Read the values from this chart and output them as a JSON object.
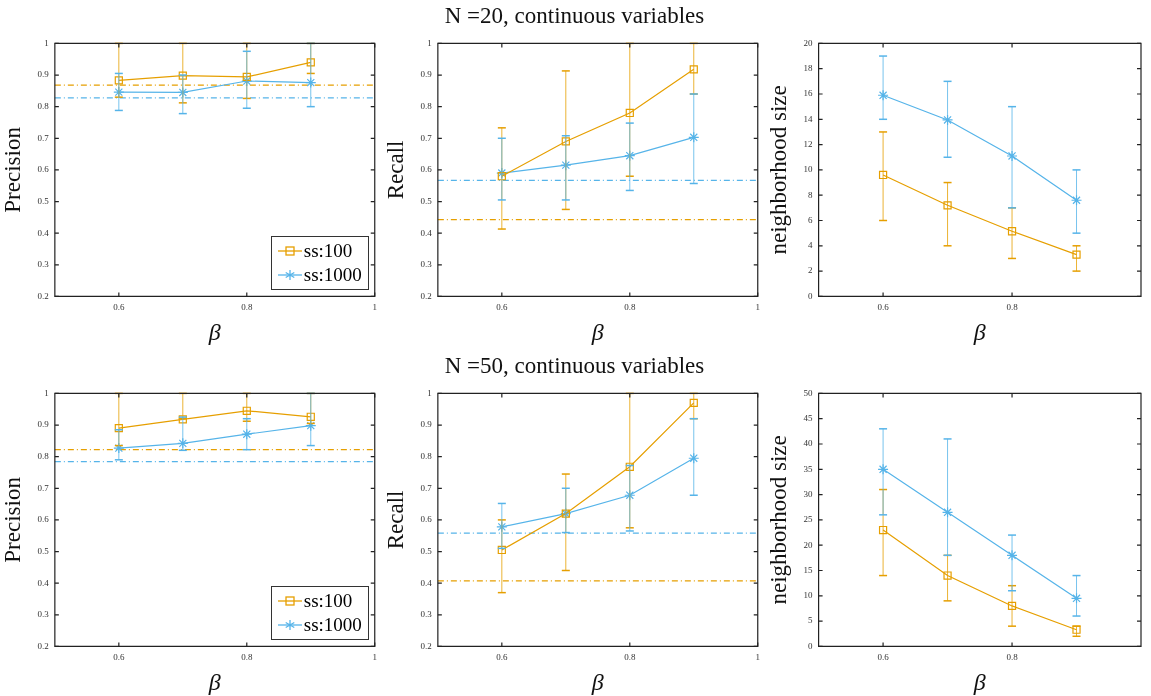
{
  "chart_data": [
    {
      "type": "line",
      "xlabel": "β",
      "ylabel": "Precision",
      "xlim": [
        0.5,
        1
      ],
      "xticks": [
        0.6,
        0.8,
        1
      ],
      "ylim": [
        0.2,
        1
      ],
      "yticks": [
        0.2,
        0.3,
        0.4,
        0.5,
        0.6,
        0.7,
        0.8,
        0.9,
        1
      ],
      "grid": false,
      "legend": "bottom right",
      "x": [
        0.6,
        0.7,
        0.8,
        0.9
      ],
      "series": [
        {
          "name": "ss:100",
          "color": "#e69f00",
          "marker": "square",
          "values": [
            0.883,
            0.898,
            0.894,
            0.94
          ],
          "errors": [
            [
              0.83,
              1
            ],
            [
              0.812,
              1
            ],
            [
              0.826,
              1
            ],
            [
              0.905,
              1
            ]
          ]
        },
        {
          "name": "ss:1000",
          "color": "#56b4e9",
          "marker": "cross",
          "values": [
            0.846,
            0.845,
            0.881,
            0.876
          ],
          "errors": [
            [
              0.788,
              0.905
            ],
            [
              0.778,
              0.9
            ],
            [
              0.795,
              0.975
            ],
            [
              0.8,
              1
            ]
          ]
        }
      ],
      "ref_lines": [
        {
          "axis": "y",
          "value": 0.868,
          "color": "#e69f00",
          "line_style": "dashed"
        },
        {
          "axis": "y",
          "value": 0.828,
          "color": "#56b4e9",
          "line_style": "dashed"
        }
      ]
    },
    {
      "type": "line",
      "title": "N =20, continuous variables",
      "xlabel": "β",
      "ylabel": "Recall",
      "xlim": [
        0.5,
        1
      ],
      "xticks": [
        0.6,
        0.8,
        1
      ],
      "ylim": [
        0.2,
        1
      ],
      "yticks": [
        0.2,
        0.3,
        0.4,
        0.5,
        0.6,
        0.7,
        0.8,
        0.9,
        1
      ],
      "grid": false,
      "x": [
        0.6,
        0.7,
        0.8,
        0.9
      ],
      "series": [
        {
          "color": "#e69f00",
          "marker": "square",
          "values": [
            0.58,
            0.69,
            0.78,
            0.918
          ],
          "errors": [
            [
              0.413,
              0.733
            ],
            [
              0.475,
              0.913
            ],
            [
              0.58,
              1
            ],
            [
              0.84,
              1
            ]
          ]
        },
        {
          "color": "#56b4e9",
          "marker": "cross",
          "values": [
            0.59,
            0.615,
            0.645,
            0.703
          ],
          "errors": [
            [
              0.505,
              0.7
            ],
            [
              0.505,
              0.708
            ],
            [
              0.535,
              0.748
            ],
            [
              0.557,
              0.84
            ]
          ]
        }
      ],
      "ref_lines": [
        {
          "axis": "y",
          "value": 0.567,
          "color": "#56b4e9",
          "line_style": "dashed"
        },
        {
          "axis": "y",
          "value": 0.443,
          "color": "#e69f00",
          "line_style": "dashed"
        }
      ]
    },
    {
      "type": "line",
      "xlabel": "β",
      "ylabel": "neighborhood size",
      "xlim": [
        0.5,
        1
      ],
      "xticks": [
        0.6,
        0.8
      ],
      "ylim": [
        0,
        20
      ],
      "yticks": [
        0,
        2,
        4,
        6,
        8,
        10,
        12,
        14,
        16,
        18,
        20
      ],
      "grid": false,
      "x": [
        0.6,
        0.7,
        0.8,
        0.9
      ],
      "series": [
        {
          "color": "#e69f00",
          "marker": "square",
          "values": [
            9.6,
            7.2,
            5.15,
            3.3
          ],
          "errors": [
            [
              6,
              13
            ],
            [
              4,
              9
            ],
            [
              3,
              7
            ],
            [
              2,
              4
            ]
          ]
        },
        {
          "color": "#56b4e9",
          "marker": "cross",
          "values": [
            15.9,
            13.95,
            11.1,
            7.6
          ],
          "errors": [
            [
              14,
              19
            ],
            [
              11,
              17
            ],
            [
              7,
              15
            ],
            [
              5,
              10
            ]
          ]
        }
      ]
    },
    {
      "type": "line",
      "xlabel": "β",
      "ylabel": "Precision",
      "xlim": [
        0.5,
        1
      ],
      "xticks": [
        0.6,
        0.8,
        1
      ],
      "ylim": [
        0.2,
        1
      ],
      "yticks": [
        0.2,
        0.3,
        0.4,
        0.5,
        0.6,
        0.7,
        0.8,
        0.9,
        1
      ],
      "grid": false,
      "legend": "bottom right",
      "x": [
        0.6,
        0.7,
        0.8,
        0.9
      ],
      "series": [
        {
          "name": "ss:100",
          "color": "#e69f00",
          "marker": "square",
          "values": [
            0.89,
            0.918,
            0.945,
            0.926
          ],
          "errors": [
            [
              0.835,
              1
            ],
            [
              0.92,
              1
            ],
            [
              0.912,
              1
            ],
            [
              0.905,
              1
            ]
          ]
        },
        {
          "name": "ss:1000",
          "color": "#56b4e9",
          "marker": "cross",
          "values": [
            0.827,
            0.842,
            0.871,
            0.898
          ],
          "errors": [
            [
              0.79,
              0.885
            ],
            [
              0.82,
              0.925
            ],
            [
              0.822,
              0.92
            ],
            [
              0.835,
              1
            ]
          ]
        }
      ],
      "ref_lines": [
        {
          "axis": "y",
          "value": 0.822,
          "color": "#e69f00",
          "line_style": "dashed"
        },
        {
          "axis": "y",
          "value": 0.784,
          "color": "#56b4e9",
          "line_style": "dashed"
        }
      ]
    },
    {
      "type": "line",
      "title": "N =50, continuous variables",
      "xlabel": "β",
      "ylabel": "Recall",
      "xlim": [
        0.5,
        1
      ],
      "xticks": [
        0.6,
        0.8,
        1
      ],
      "ylim": [
        0.2,
        1
      ],
      "yticks": [
        0.2,
        0.3,
        0.4,
        0.5,
        0.6,
        0.7,
        0.8,
        0.9,
        1
      ],
      "grid": false,
      "x": [
        0.6,
        0.7,
        0.8,
        0.9
      ],
      "series": [
        {
          "color": "#e69f00",
          "marker": "square",
          "values": [
            0.505,
            0.62,
            0.768,
            0.97
          ],
          "errors": [
            [
              0.37,
              0.6
            ],
            [
              0.44,
              0.745
            ],
            [
              0.575,
              1
            ],
            [
              0.92,
              1
            ]
          ]
        },
        {
          "color": "#56b4e9",
          "marker": "cross",
          "values": [
            0.578,
            0.62,
            0.678,
            0.795
          ],
          "errors": [
            [
              0.51,
              0.652
            ],
            [
              0.56,
              0.7
            ],
            [
              0.565,
              0.772
            ],
            [
              0.678,
              0.92
            ]
          ]
        }
      ],
      "ref_lines": [
        {
          "axis": "y",
          "value": 0.558,
          "color": "#56b4e9",
          "line_style": "dashed"
        },
        {
          "axis": "y",
          "value": 0.407,
          "color": "#e69f00",
          "line_style": "dashed"
        }
      ]
    },
    {
      "type": "line",
      "xlabel": "β",
      "ylabel": "neighborhood size",
      "xlim": [
        0.5,
        1
      ],
      "xticks": [
        0.6,
        0.8
      ],
      "ylim": [
        0,
        50
      ],
      "yticks": [
        0,
        5,
        10,
        15,
        20,
        25,
        30,
        35,
        40,
        45,
        50
      ],
      "grid": false,
      "x": [
        0.6,
        0.7,
        0.8,
        0.9
      ],
      "series": [
        {
          "color": "#e69f00",
          "marker": "square",
          "values": [
            23,
            14,
            8,
            3.3
          ],
          "errors": [
            [
              14,
              31
            ],
            [
              9,
              18
            ],
            [
              4,
              12
            ],
            [
              2,
              4
            ]
          ]
        },
        {
          "color": "#56b4e9",
          "marker": "cross",
          "values": [
            35,
            26.5,
            18,
            9.5
          ],
          "errors": [
            [
              26,
              43
            ],
            [
              18,
              41
            ],
            [
              11,
              22
            ],
            [
              6,
              14
            ]
          ]
        }
      ]
    }
  ]
}
